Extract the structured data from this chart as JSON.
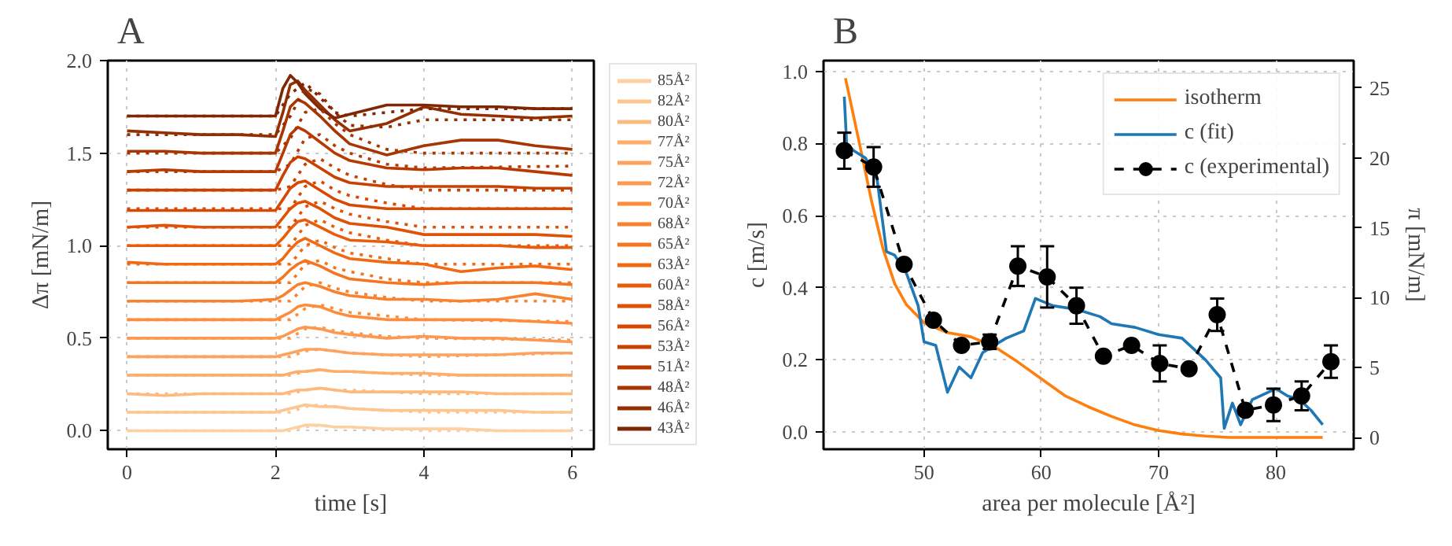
{
  "chart_data": [
    {
      "type": "line",
      "title": "A",
      "xlabel": "time [s]",
      "ylabel": "Δπ [mN/m]",
      "x": [
        0,
        0.5,
        1,
        1.5,
        2,
        2.1,
        2.2,
        2.3,
        2.4,
        2.6,
        2.8,
        3,
        3.5,
        4,
        4.5,
        5,
        5.5,
        6
      ],
      "xlim": [
        -0.26,
        6.29
      ],
      "ylim": [
        -0.1,
        2.0
      ],
      "xticks": [
        0,
        2,
        4,
        6
      ],
      "yticks": [
        {
          "value": 0,
          "label": "0.0"
        },
        {
          "value": 0.5,
          "label": "0.5"
        },
        {
          "value": 1,
          "label": "1.0"
        },
        {
          "value": 1.5,
          "label": "1.5"
        },
        {
          "value": 2,
          "label": "2.0"
        }
      ],
      "grid": true,
      "legend": "right",
      "line_style": "solid",
      "series": [
        {
          "name": "85Å²",
          "color": "#fdd0a2",
          "values": [
            0,
            0,
            0,
            0,
            0,
            0,
            0.01,
            0.02,
            0.03,
            0.03,
            0.02,
            0.02,
            0.01,
            0.01,
            0.01,
            0,
            0,
            0
          ]
        },
        {
          "name": "82Å²",
          "color": "#fdc590",
          "values": [
            0.1,
            0.1,
            0.1,
            0.1,
            0.1,
            0.11,
            0.12,
            0.13,
            0.14,
            0.13,
            0.13,
            0.12,
            0.11,
            0.11,
            0.11,
            0.11,
            0.1,
            0.1
          ]
        },
        {
          "name": "80Å²",
          "color": "#fdba7e",
          "values": [
            0.2,
            0.19,
            0.2,
            0.2,
            0.2,
            0.2,
            0.21,
            0.22,
            0.22,
            0.23,
            0.22,
            0.21,
            0.21,
            0.21,
            0.21,
            0.2,
            0.2,
            0.2
          ]
        },
        {
          "name": "77Å²",
          "color": "#fdae6b",
          "values": [
            0.3,
            0.3,
            0.3,
            0.3,
            0.3,
            0.3,
            0.31,
            0.32,
            0.32,
            0.33,
            0.32,
            0.32,
            0.31,
            0.31,
            0.3,
            0.3,
            0.3,
            0.3
          ]
        },
        {
          "name": "75Å²",
          "color": "#fda35f",
          "values": [
            0.4,
            0.4,
            0.4,
            0.4,
            0.4,
            0.41,
            0.42,
            0.43,
            0.44,
            0.44,
            0.43,
            0.42,
            0.41,
            0.41,
            0.41,
            0.41,
            0.42,
            0.42
          ]
        },
        {
          "name": "72Å²",
          "color": "#fd9850",
          "values": [
            0.5,
            0.5,
            0.5,
            0.5,
            0.5,
            0.51,
            0.53,
            0.55,
            0.56,
            0.55,
            0.53,
            0.52,
            0.5,
            0.51,
            0.5,
            0.5,
            0.49,
            0.48
          ]
        },
        {
          "name": "70Å²",
          "color": "#fd8d3c",
          "values": [
            0.6,
            0.6,
            0.6,
            0.6,
            0.6,
            0.62,
            0.64,
            0.67,
            0.68,
            0.67,
            0.64,
            0.62,
            0.6,
            0.6,
            0.6,
            0.6,
            0.59,
            0.58
          ]
        },
        {
          "name": "68Å²",
          "color": "#f98230",
          "values": [
            0.7,
            0.7,
            0.7,
            0.7,
            0.71,
            0.73,
            0.76,
            0.79,
            0.8,
            0.78,
            0.75,
            0.73,
            0.71,
            0.71,
            0.7,
            0.71,
            0.74,
            0.71
          ]
        },
        {
          "name": "65Å²",
          "color": "#f57520",
          "values": [
            0.8,
            0.8,
            0.8,
            0.8,
            0.8,
            0.83,
            0.87,
            0.9,
            0.92,
            0.89,
            0.85,
            0.82,
            0.8,
            0.79,
            0.8,
            0.8,
            0.8,
            0.79
          ]
        },
        {
          "name": "63Å²",
          "color": "#f16913",
          "values": [
            0.91,
            0.9,
            0.9,
            0.9,
            0.9,
            0.93,
            0.98,
            1.02,
            1.04,
            1.0,
            0.96,
            0.93,
            0.91,
            0.9,
            0.86,
            0.88,
            0.89,
            0.87
          ]
        },
        {
          "name": "60Å²",
          "color": "#e85c0b",
          "values": [
            1.0,
            1.0,
            1.0,
            1.0,
            1.0,
            1.04,
            1.09,
            1.13,
            1.14,
            1.1,
            1.06,
            1.03,
            1.02,
            1.0,
            1.0,
            1.0,
            0.99,
            0.99
          ]
        },
        {
          "name": "58Å²",
          "color": "#df5106",
          "values": [
            1.1,
            1.11,
            1.1,
            1.1,
            1.1,
            1.15,
            1.2,
            1.23,
            1.24,
            1.2,
            1.15,
            1.12,
            1.1,
            1.06,
            1.06,
            1.06,
            1.06,
            1.05
          ]
        },
        {
          "name": "56Å²",
          "color": "#d94801",
          "values": [
            1.19,
            1.19,
            1.19,
            1.19,
            1.19,
            1.25,
            1.31,
            1.34,
            1.35,
            1.3,
            1.25,
            1.22,
            1.2,
            1.2,
            1.2,
            1.2,
            1.2,
            1.2
          ]
        },
        {
          "name": "53Å²",
          "color": "#c84102",
          "values": [
            1.3,
            1.3,
            1.3,
            1.3,
            1.3,
            1.38,
            1.45,
            1.48,
            1.47,
            1.42,
            1.37,
            1.34,
            1.32,
            1.32,
            1.32,
            1.32,
            1.31,
            1.31
          ]
        },
        {
          "name": "51Å²",
          "color": "#b73a03",
          "values": [
            1.4,
            1.41,
            1.4,
            1.4,
            1.4,
            1.5,
            1.6,
            1.64,
            1.62,
            1.56,
            1.5,
            1.46,
            1.42,
            1.41,
            1.42,
            1.42,
            1.4,
            1.38
          ]
        },
        {
          "name": "48Å²",
          "color": "#a63603",
          "values": [
            1.51,
            1.51,
            1.5,
            1.5,
            1.5,
            1.62,
            1.75,
            1.79,
            1.77,
            1.7,
            1.62,
            1.55,
            1.49,
            1.54,
            1.57,
            1.57,
            1.54,
            1.52
          ]
        },
        {
          "name": "46Å²",
          "color": "#932f03",
          "values": [
            1.62,
            1.61,
            1.6,
            1.6,
            1.59,
            1.72,
            1.87,
            1.89,
            1.84,
            1.76,
            1.68,
            1.62,
            1.66,
            1.75,
            1.71,
            1.7,
            1.69,
            1.7
          ]
        },
        {
          "name": "43Å²",
          "color": "#7f2704",
          "values": [
            1.7,
            1.7,
            1.7,
            1.7,
            1.7,
            1.85,
            1.92,
            1.88,
            1.82,
            1.74,
            1.69,
            1.71,
            1.76,
            1.76,
            1.75,
            1.75,
            1.74,
            1.74
          ]
        },
        {
          "color": "#fdd0a2",
          "line_style": "dotted",
          "x": [
            0,
            2,
            2.2,
            2.4,
            2.6,
            2.8,
            3,
            3.5,
            4,
            6
          ],
          "values": [
            0,
            0,
            0,
            0.02,
            0.03,
            0.02,
            0.02,
            0.01,
            0,
            0
          ]
        },
        {
          "color": "#fdc590",
          "line_style": "dotted",
          "x": [
            0,
            2,
            2.2,
            2.4,
            2.6,
            2.8,
            3,
            3.5,
            4,
            6
          ],
          "values": [
            0.1,
            0.1,
            0.1,
            0.13,
            0.14,
            0.13,
            0.12,
            0.11,
            0.1,
            0.1
          ]
        },
        {
          "color": "#fdba7e",
          "line_style": "dotted",
          "x": [
            0,
            2,
            2.2,
            2.4,
            2.6,
            2.8,
            3,
            3.5,
            4,
            6
          ],
          "values": [
            0.2,
            0.2,
            0.2,
            0.22,
            0.23,
            0.22,
            0.22,
            0.21,
            0.2,
            0.2
          ]
        },
        {
          "color": "#fdae6b",
          "line_style": "dotted",
          "x": [
            0,
            2,
            2.2,
            2.4,
            2.6,
            2.8,
            3,
            3.5,
            4,
            6
          ],
          "values": [
            0.3,
            0.3,
            0.3,
            0.32,
            0.33,
            0.32,
            0.32,
            0.31,
            0.3,
            0.3
          ]
        },
        {
          "color": "#fda35f",
          "line_style": "dotted",
          "x": [
            0,
            2,
            2.2,
            2.4,
            2.6,
            2.8,
            3,
            3.5,
            4,
            6
          ],
          "values": [
            0.4,
            0.4,
            0.4,
            0.43,
            0.44,
            0.43,
            0.42,
            0.41,
            0.4,
            0.42
          ]
        },
        {
          "color": "#fd9850",
          "line_style": "dotted",
          "x": [
            0,
            2,
            2.2,
            2.4,
            2.6,
            2.8,
            3,
            3.5,
            4,
            6
          ],
          "values": [
            0.5,
            0.5,
            0.5,
            0.55,
            0.56,
            0.54,
            0.53,
            0.51,
            0.5,
            0.49
          ]
        },
        {
          "color": "#fd8d3c",
          "line_style": "dotted",
          "x": [
            0,
            2,
            2.2,
            2.4,
            2.6,
            2.8,
            3,
            3.5,
            4,
            6
          ],
          "values": [
            0.6,
            0.6,
            0.6,
            0.66,
            0.68,
            0.66,
            0.64,
            0.62,
            0.6,
            0.59
          ]
        },
        {
          "color": "#f98230",
          "line_style": "dotted",
          "x": [
            0,
            2,
            2.2,
            2.4,
            2.6,
            2.8,
            3,
            3.5,
            4,
            6
          ],
          "values": [
            0.7,
            0.7,
            0.7,
            0.78,
            0.8,
            0.77,
            0.75,
            0.72,
            0.7,
            0.7
          ]
        },
        {
          "color": "#f57520",
          "line_style": "dotted",
          "x": [
            0,
            2,
            2.2,
            2.4,
            2.6,
            2.8,
            3,
            3.5,
            4,
            6
          ],
          "values": [
            0.8,
            0.8,
            0.8,
            0.9,
            0.92,
            0.88,
            0.86,
            0.82,
            0.8,
            0.8
          ]
        },
        {
          "color": "#f16913",
          "line_style": "dotted",
          "x": [
            0,
            2,
            2.2,
            2.4,
            2.6,
            2.8,
            3,
            3.5,
            4,
            6
          ],
          "values": [
            0.9,
            0.9,
            0.9,
            1.0,
            1.03,
            0.99,
            0.96,
            0.93,
            0.9,
            0.9
          ]
        },
        {
          "color": "#e85c0b",
          "line_style": "dotted",
          "x": [
            0,
            2,
            2.2,
            2.4,
            2.6,
            2.8,
            3,
            3.5,
            4,
            6
          ],
          "values": [
            1.0,
            1.0,
            1.0,
            1.11,
            1.14,
            1.1,
            1.07,
            1.03,
            1.0,
            1.0
          ]
        },
        {
          "color": "#df5106",
          "line_style": "dotted",
          "x": [
            0,
            2,
            2.2,
            2.4,
            2.6,
            2.8,
            3,
            3.5,
            4,
            6
          ],
          "values": [
            1.1,
            1.1,
            1.1,
            1.21,
            1.24,
            1.2,
            1.17,
            1.13,
            1.1,
            1.1
          ]
        },
        {
          "color": "#d94801",
          "line_style": "dotted",
          "x": [
            0,
            2,
            2.2,
            2.4,
            2.6,
            2.8,
            3,
            3.5,
            4,
            6
          ],
          "values": [
            1.2,
            1.2,
            1.2,
            1.32,
            1.35,
            1.3,
            1.27,
            1.23,
            1.2,
            1.2
          ]
        },
        {
          "color": "#c84102",
          "line_style": "dotted",
          "x": [
            0,
            2,
            2.2,
            2.4,
            2.6,
            2.8,
            3,
            3.5,
            4,
            6
          ],
          "values": [
            1.3,
            1.3,
            1.32,
            1.44,
            1.47,
            1.42,
            1.38,
            1.33,
            1.3,
            1.3
          ]
        },
        {
          "color": "#b73a03",
          "line_style": "dotted",
          "x": [
            0,
            2,
            2.2,
            2.4,
            2.6,
            2.8,
            3,
            3.5,
            4,
            6
          ],
          "values": [
            1.4,
            1.4,
            1.44,
            1.58,
            1.6,
            1.54,
            1.5,
            1.44,
            1.42,
            1.43
          ]
        },
        {
          "color": "#a63603",
          "line_style": "dotted",
          "x": [
            0,
            2,
            2.2,
            2.4,
            2.6,
            2.8,
            3,
            3.5,
            4,
            6
          ],
          "values": [
            1.5,
            1.5,
            1.58,
            1.72,
            1.74,
            1.66,
            1.6,
            1.52,
            1.5,
            1.5
          ]
        },
        {
          "color": "#932f03",
          "line_style": "dotted",
          "x": [
            0,
            2,
            2.2,
            2.4,
            2.6,
            2.8,
            3,
            3.5,
            4,
            6
          ],
          "values": [
            1.6,
            1.6,
            1.7,
            1.85,
            1.82,
            1.72,
            1.65,
            1.64,
            1.68,
            1.68
          ]
        },
        {
          "color": "#7f2704",
          "line_style": "dotted",
          "x": [
            0,
            2,
            2.2,
            2.4,
            2.6,
            2.8,
            3,
            3.5,
            4,
            6
          ],
          "values": [
            1.7,
            1.7,
            1.82,
            1.88,
            1.8,
            1.72,
            1.7,
            1.72,
            1.74,
            1.74
          ]
        }
      ]
    },
    {
      "type": "line",
      "title": "B",
      "xlabel": "area per molecule [Å²]",
      "ylabel": "c [m/s]",
      "y2label": "π [mN/m]",
      "xlim": [
        41.43,
        86.64
      ],
      "ylim": [
        -0.048,
        1.03
      ],
      "y2lim": [
        -0.84,
        26.96
      ],
      "xticks": [
        50,
        60,
        70,
        80
      ],
      "yticks": [
        {
          "value": 0,
          "label": "0.0"
        },
        {
          "value": 0.2,
          "label": "0.2"
        },
        {
          "value": 0.4,
          "label": "0.4"
        },
        {
          "value": 0.6,
          "label": "0.6"
        },
        {
          "value": 0.8,
          "label": "0.8"
        },
        {
          "value": 1,
          "label": "1.0"
        }
      ],
      "y2ticks": [
        0,
        5,
        10,
        15,
        20,
        25
      ],
      "grid": true,
      "legend": "top right",
      "series": [
        {
          "name": "isotherm",
          "color": "#ff7f0e",
          "axis": "y2",
          "x": [
            43.3,
            44.5,
            45.5,
            46.5,
            47.5,
            48.5,
            50,
            52,
            54,
            56,
            58,
            60,
            62,
            64,
            66,
            68,
            70,
            72,
            74,
            76,
            80,
            84
          ],
          "values": [
            25.7,
            21,
            17,
            13.5,
            11,
            9.5,
            8.2,
            7.5,
            7.2,
            6.5,
            5.4,
            4.2,
            3.0,
            2.2,
            1.5,
            0.9,
            0.5,
            0.25,
            0.1,
            0.0,
            0.0,
            0.0
          ]
        },
        {
          "name": "c (fit)",
          "color": "#1f77b4",
          "x": [
            43.2,
            43.4,
            44,
            45,
            46,
            46.8,
            47.5,
            48.5,
            49.5,
            50,
            51,
            52,
            53,
            54,
            55,
            57,
            58.5,
            59.5,
            61,
            63,
            65,
            66,
            68,
            70,
            72,
            74,
            75.3,
            75.6,
            76.3,
            77,
            78,
            80,
            81,
            82,
            83,
            84
          ],
          "values": [
            0.93,
            0.8,
            0.78,
            0.76,
            0.7,
            0.5,
            0.49,
            0.44,
            0.35,
            0.25,
            0.24,
            0.11,
            0.18,
            0.15,
            0.22,
            0.26,
            0.28,
            0.37,
            0.35,
            0.34,
            0.32,
            0.3,
            0.29,
            0.27,
            0.26,
            0.2,
            0.15,
            0.01,
            0.08,
            0.02,
            0.09,
            0.12,
            0.1,
            0.09,
            0.06,
            0.02
          ]
        },
        {
          "name": "c (experimental)",
          "color": "#000000",
          "marker": "circle",
          "line_style": "dashed",
          "x": [
            43.2,
            45.7,
            48.3,
            50.8,
            53.2,
            55.6,
            58.0,
            60.5,
            63.0,
            65.3,
            67.7,
            70.1,
            72.6,
            75.0,
            77.4,
            79.8,
            82.2,
            84.7
          ],
          "values": [
            0.78,
            0.735,
            0.465,
            0.31,
            0.24,
            0.25,
            0.46,
            0.43,
            0.35,
            0.21,
            0.24,
            0.19,
            0.175,
            0.325,
            0.06,
            0.075,
            0.1,
            0.195
          ],
          "errors": [
            0.05,
            0.055,
            0.01,
            0.01,
            0.01,
            0.02,
            0.055,
            0.085,
            0.05,
            0.01,
            0.01,
            0.05,
            0.01,
            0.045,
            0.01,
            0.045,
            0.04,
            0.045
          ]
        }
      ]
    }
  ]
}
